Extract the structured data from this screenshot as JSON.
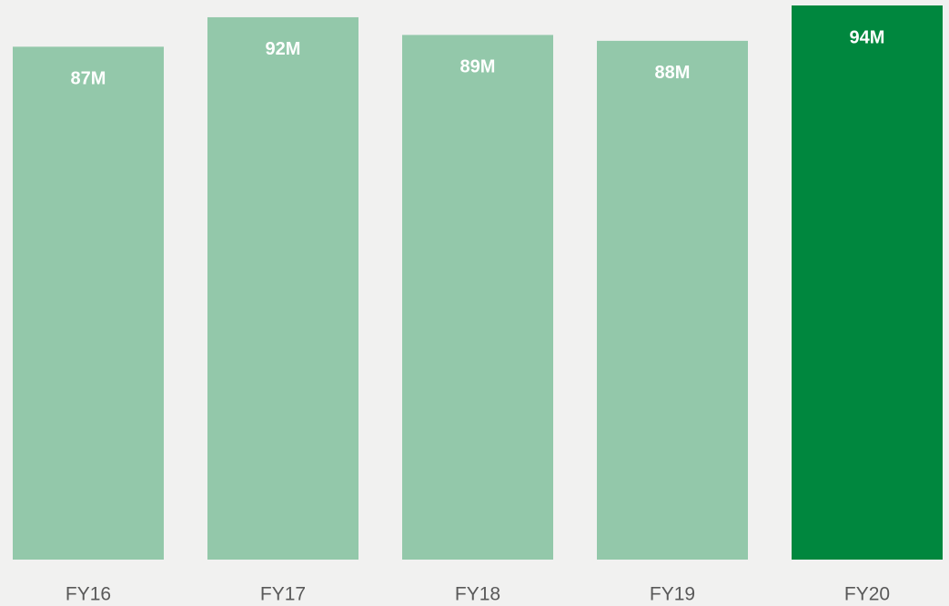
{
  "chart_data": {
    "type": "bar",
    "categories": [
      "FY16",
      "FY17",
      "FY18",
      "FY19",
      "FY20"
    ],
    "values": [
      87,
      92,
      89,
      88,
      94
    ],
    "value_labels": [
      "87M",
      "92M",
      "89M",
      "88M",
      "94M"
    ],
    "colors": [
      "#93c8aa",
      "#93c8aa",
      "#93c8aa",
      "#93c8aa",
      "#00873e"
    ]
  }
}
